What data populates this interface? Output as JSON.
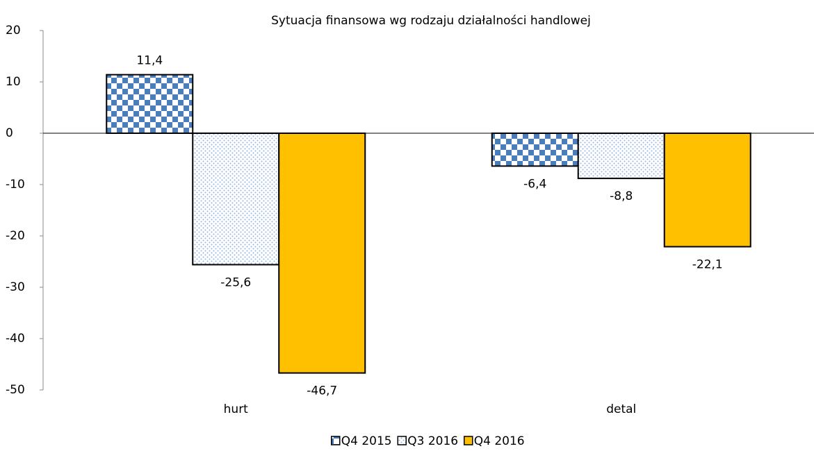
{
  "chart_data": {
    "type": "bar",
    "title": "Sytuacja finansowa wg rodzaju działalności handlowej",
    "categories": [
      "hurt",
      "detal"
    ],
    "series": [
      {
        "name": "Q4 2015",
        "color": "#4a7ebb",
        "pattern": "checker",
        "values": [
          11.4,
          -6.4
        ],
        "value_labels": [
          "11,4",
          "-6,4"
        ]
      },
      {
        "name": "Q3 2016",
        "color": "#8fb4e3",
        "pattern": "dots",
        "values": [
          -25.6,
          -8.8
        ],
        "value_labels": [
          "-25,6",
          "-8,8"
        ]
      },
      {
        "name": "Q4 2016",
        "color": "#ffc000",
        "values": [
          -46.7,
          -22.1
        ],
        "value_labels": [
          "-46,7",
          "-22,1"
        ]
      }
    ],
    "ylim": [
      -50,
      20
    ],
    "yticks": [
      -50,
      -40,
      -30,
      -20,
      -10,
      0,
      10,
      20
    ],
    "legend": "bottom"
  }
}
